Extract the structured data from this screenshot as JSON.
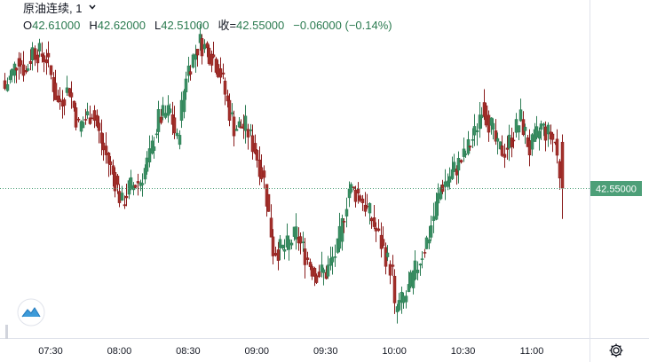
{
  "header": {
    "symbol": "原油连续",
    "interval": "1",
    "interval_chevron": "chevron-down-icon",
    "open_label": "O",
    "open_value": "42.61000",
    "high_label": "H",
    "high_value": "42.62000",
    "low_label": "L",
    "low_value": "42.51000",
    "close_label": "收=",
    "close_value": "42.55000",
    "change": "−0.06000",
    "change_pct": "(−0.14%)"
  },
  "price_tag": "42.55000",
  "x_ticks": [
    "07:30",
    "08:00",
    "08:30",
    "09:00",
    "09:30",
    "10:00",
    "10:30",
    "11:00"
  ],
  "icons": {
    "settings": "gear-icon",
    "logo": "tradingview-logo-icon"
  },
  "colors": {
    "up": "#26a69a",
    "down": "#ef5350",
    "up_candle": "#2d7d55",
    "down_candle": "#8a1c1c",
    "last_price": "#4d9f78",
    "axis_text": "#131722",
    "grid_border": "#e0e3eb",
    "logo_blue": "#3d9bd9"
  },
  "chart_data": {
    "type": "candlestick",
    "symbol": "原油连续",
    "interval_minutes": 1,
    "last_price": 42.55,
    "last_bar": {
      "open": 42.61,
      "high": 42.62,
      "low": 42.51,
      "close": 42.55
    },
    "time_ticks": [
      "07:30",
      "08:00",
      "08:30",
      "09:00",
      "09:30",
      "10:00",
      "10:30",
      "11:00"
    ],
    "y_range": [
      42.355,
      42.795
    ],
    "close_path": [
      [
        "07:10",
        42.68
      ],
      [
        "07:16",
        42.72
      ],
      [
        "07:19",
        42.7
      ],
      [
        "07:22",
        42.73
      ],
      [
        "07:28",
        42.72
      ],
      [
        "07:33",
        42.66
      ],
      [
        "07:38",
        42.68
      ],
      [
        "07:42",
        42.63
      ],
      [
        "07:48",
        42.65
      ],
      [
        "07:53",
        42.6
      ],
      [
        "07:58",
        42.56
      ],
      [
        "08:01",
        42.53
      ],
      [
        "08:04",
        42.55
      ],
      [
        "08:09",
        42.56
      ],
      [
        "08:13",
        42.59
      ],
      [
        "08:17",
        42.64
      ],
      [
        "08:22",
        42.65
      ],
      [
        "08:25",
        42.61
      ],
      [
        "08:29",
        42.7
      ],
      [
        "08:32",
        42.72
      ],
      [
        "08:35",
        42.74
      ],
      [
        "08:38",
        42.73
      ],
      [
        "08:41",
        42.72
      ],
      [
        "08:44",
        42.7
      ],
      [
        "08:47",
        42.66
      ],
      [
        "08:50",
        42.63
      ],
      [
        "08:55",
        42.63
      ],
      [
        "08:59",
        42.6
      ],
      [
        "09:03",
        42.56
      ],
      [
        "09:07",
        42.47
      ],
      [
        "09:12",
        42.47
      ],
      [
        "09:17",
        42.49
      ],
      [
        "09:20",
        42.47
      ],
      [
        "09:25",
        42.44
      ],
      [
        "09:30",
        42.44
      ],
      [
        "09:35",
        42.47
      ],
      [
        "09:40",
        42.55
      ],
      [
        "09:45",
        42.54
      ],
      [
        "09:50",
        42.51
      ],
      [
        "09:55",
        42.47
      ],
      [
        "09:59",
        42.44
      ],
      [
        "10:00",
        42.39
      ],
      [
        "10:05",
        42.41
      ],
      [
        "10:10",
        42.45
      ],
      [
        "10:15",
        42.49
      ],
      [
        "10:20",
        42.55
      ],
      [
        "10:25",
        42.57
      ],
      [
        "10:30",
        42.59
      ],
      [
        "10:35",
        42.62
      ],
      [
        "10:38",
        42.66
      ],
      [
        "10:42",
        42.63
      ],
      [
        "10:45",
        42.6
      ],
      [
        "10:48",
        42.6
      ],
      [
        "10:50",
        42.61
      ],
      [
        "10:55",
        42.64
      ],
      [
        "10:59",
        42.6
      ],
      [
        "11:04",
        42.63
      ],
      [
        "11:07",
        42.62
      ],
      [
        "11:10",
        42.61
      ],
      [
        "11:13",
        42.55
      ]
    ]
  }
}
